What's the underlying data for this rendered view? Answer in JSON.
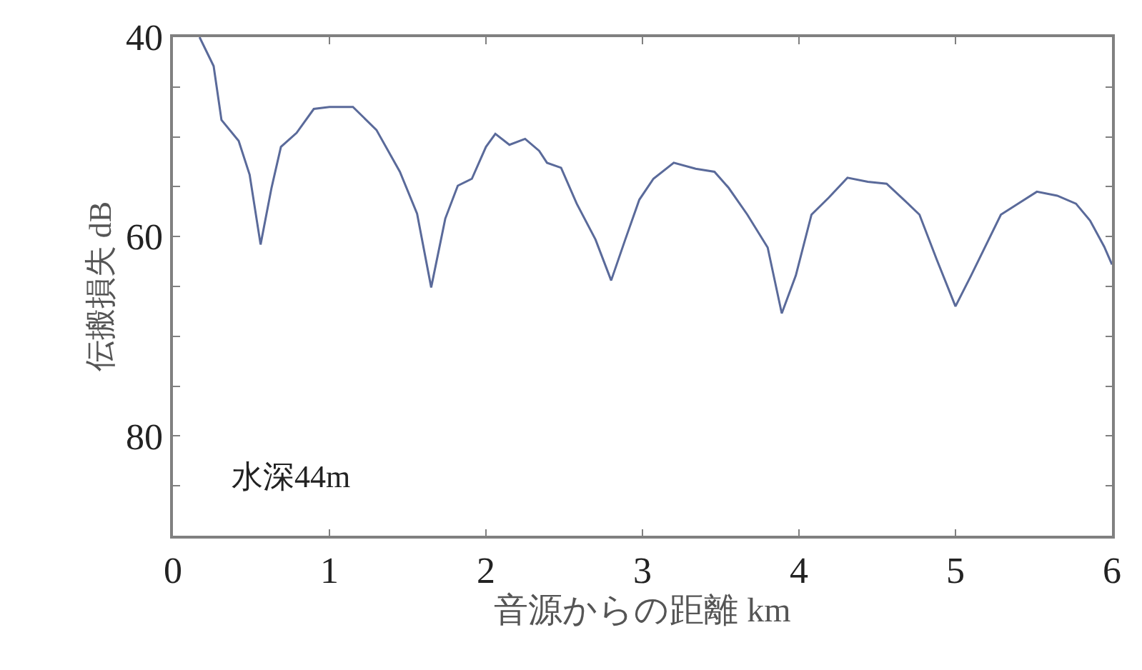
{
  "chart_data": {
    "type": "line",
    "xlabel": "音源からの距離 km",
    "ylabel": "伝搬損失 dB",
    "annotations": [
      "水深44m"
    ],
    "x": [
      0.17,
      0.26,
      0.31,
      0.42,
      0.49,
      0.56,
      0.63,
      0.69,
      0.79,
      0.9,
      1.0,
      1.15,
      1.3,
      1.45,
      1.56,
      1.65,
      1.74,
      1.82,
      1.91,
      2.0,
      2.06,
      2.15,
      2.25,
      2.34,
      2.39,
      2.48,
      2.58,
      2.7,
      2.8,
      2.89,
      2.98,
      3.07,
      3.2,
      3.34,
      3.46,
      3.55,
      3.67,
      3.8,
      3.89,
      3.98,
      4.08,
      4.19,
      4.31,
      4.44,
      4.56,
      4.67,
      4.77,
      4.88,
      5.0,
      5.1,
      5.29,
      5.41,
      5.52,
      5.65,
      5.77,
      5.86,
      5.95,
      6.0
    ],
    "series": [
      {
        "color": "#5a6a9a",
        "values": [
          40,
          42.9,
          48.3,
          50.4,
          53.8,
          60.8,
          55.1,
          51.0,
          49.6,
          47.2,
          47,
          47,
          49.3,
          53.5,
          57.7,
          65.1,
          58.2,
          54.9,
          54.2,
          51.0,
          49.7,
          50.8,
          50.2,
          51.4,
          52.6,
          53.1,
          56.7,
          60.3,
          64.4,
          60.3,
          56.3,
          54.2,
          52.6,
          53.2,
          53.5,
          55.1,
          57.8,
          61.1,
          67.7,
          63.9,
          57.8,
          56.1,
          54.1,
          54.5,
          54.7,
          56.3,
          57.8,
          62.3,
          67,
          63.9,
          57.8,
          56.6,
          55.5,
          55.9,
          56.7,
          58.4,
          61,
          62.8
        ]
      }
    ],
    "xlim": [
      0,
      6
    ],
    "xticks": [
      0,
      1,
      2,
      3,
      4,
      5,
      6
    ],
    "ylim": [
      90,
      40
    ],
    "yticks": [
      40,
      {
        "value": 45,
        "label": null
      },
      {
        "value": 50,
        "label": null
      },
      {
        "value": 55,
        "label": null
      },
      60,
      {
        "value": 65,
        "label": null
      },
      {
        "value": 70,
        "label": null
      },
      {
        "value": 75,
        "label": null
      },
      80,
      {
        "value": 85,
        "label": null
      },
      {
        "value": 90,
        "label": null
      }
    ],
    "marker": "none",
    "line_style": "solid"
  }
}
